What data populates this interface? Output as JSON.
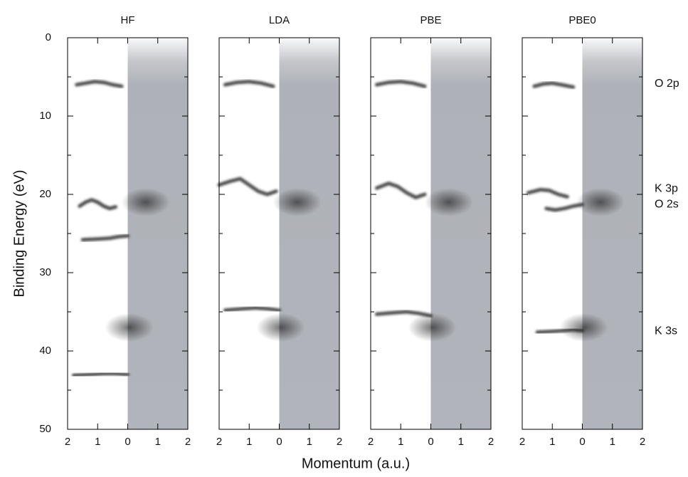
{
  "xlabel": "Momentum (a.u.)",
  "ylabel": "Binding Energy (eV)",
  "chart_data": [
    {
      "type": "spectral",
      "title": "HF",
      "xlim": [
        -2,
        2
      ],
      "ylim": [
        0,
        50
      ],
      "xticks": [
        {
          "value": -2,
          "label": "2"
        },
        {
          "value": -1,
          "label": "1"
        },
        0,
        1,
        2
      ],
      "yticks": [
        0,
        10,
        20,
        30,
        40,
        50
      ],
      "minor_yticks": [
        5,
        15,
        25,
        35,
        45
      ],
      "band_color": "#222222",
      "experiment_color": "#7d828c",
      "bands": [
        {
          "x": [
            -1.7,
            -1.4,
            -1.1,
            -0.8,
            -0.5,
            -0.2
          ],
          "y": [
            6.0,
            5.8,
            5.6,
            5.7,
            6.0,
            6.2
          ]
        },
        {
          "x": [
            -1.6,
            -1.4,
            -1.2,
            -1.0,
            -0.8,
            -0.6,
            -0.4
          ],
          "y": [
            21.5,
            21.0,
            20.7,
            21.0,
            21.5,
            21.8,
            21.6
          ]
        },
        {
          "x": [
            -1.5,
            -1.0,
            -0.6,
            -0.3,
            0
          ],
          "y": [
            25.8,
            25.7,
            25.6,
            25.4,
            25.3
          ]
        },
        {
          "x": [
            -1.8,
            -1.2,
            -0.8,
            -0.4,
            0
          ],
          "y": [
            43.1,
            43.0,
            42.9,
            42.9,
            43.0
          ]
        }
      ],
      "experiment_peaks": {
        "x": [
          0.6,
          0.05
        ],
        "y": [
          21,
          37
        ]
      }
    },
    {
      "type": "spectral",
      "title": "LDA",
      "xlim": [
        -2,
        2
      ],
      "ylim": [
        0,
        50
      ],
      "xticks": [
        {
          "value": -2,
          "label": "2"
        },
        {
          "value": -1,
          "label": "1"
        },
        0,
        1,
        2
      ],
      "yticks": [
        0,
        10,
        20,
        30,
        40,
        50
      ],
      "minor_yticks": [
        5,
        15,
        25,
        35,
        45
      ],
      "band_color": "#222222",
      "experiment_color": "#7d828c",
      "bands": [
        {
          "x": [
            -1.8,
            -1.4,
            -1.0,
            -0.6,
            -0.2
          ],
          "y": [
            6.0,
            5.7,
            5.6,
            5.8,
            6.2
          ]
        },
        {
          "x": [
            -2.0,
            -1.6,
            -1.3,
            -1.0,
            -0.7,
            -0.4,
            -0.1
          ],
          "y": [
            18.8,
            18.3,
            18.0,
            18.8,
            19.6,
            20.0,
            19.6
          ]
        },
        {
          "x": [
            -1.8,
            -1.2,
            -0.8,
            -0.4,
            0
          ],
          "y": [
            34.8,
            34.6,
            34.5,
            34.6,
            34.8
          ]
        }
      ],
      "experiment_peaks": {
        "x": [
          0.6,
          0.05
        ],
        "y": [
          21,
          37
        ]
      }
    },
    {
      "type": "spectral",
      "title": "PBE",
      "xlim": [
        -2,
        2
      ],
      "ylim": [
        0,
        50
      ],
      "xticks": [
        {
          "value": -2,
          "label": "2"
        },
        {
          "value": -1,
          "label": "1"
        },
        0,
        1,
        2
      ],
      "yticks": [
        0,
        10,
        20,
        30,
        40,
        50
      ],
      "minor_yticks": [
        5,
        15,
        25,
        35,
        45
      ],
      "band_color": "#222222",
      "experiment_color": "#7d828c",
      "bands": [
        {
          "x": [
            -1.8,
            -1.4,
            -1.0,
            -0.6,
            -0.2
          ],
          "y": [
            6.0,
            5.7,
            5.6,
            5.8,
            6.2
          ]
        },
        {
          "x": [
            -1.8,
            -1.4,
            -1.1,
            -0.8,
            -0.5,
            -0.2
          ],
          "y": [
            19.2,
            18.6,
            19.0,
            19.8,
            20.4,
            20.0
          ]
        },
        {
          "x": [
            -1.8,
            -1.2,
            -0.8,
            -0.4,
            0
          ],
          "y": [
            35.3,
            35.1,
            35.0,
            35.2,
            35.5
          ]
        }
      ],
      "experiment_peaks": {
        "x": [
          0.6,
          0.05
        ],
        "y": [
          21,
          37
        ]
      }
    },
    {
      "type": "spectral",
      "title": "PBE0",
      "xlim": [
        -2,
        2
      ],
      "ylim": [
        0,
        50
      ],
      "xticks": [
        {
          "value": -2,
          "label": "2"
        },
        {
          "value": -1,
          "label": "1"
        },
        0,
        1,
        2
      ],
      "yticks": [
        0,
        10,
        20,
        30,
        40,
        50
      ],
      "minor_yticks": [
        5,
        15,
        25,
        35,
        45
      ],
      "band_color": "#222222",
      "experiment_color": "#7d828c",
      "bands": [
        {
          "x": [
            -1.6,
            -1.3,
            -1.0,
            -0.7,
            -0.3
          ],
          "y": [
            6.2,
            5.9,
            5.8,
            6.0,
            6.3
          ]
        },
        {
          "x": [
            -1.8,
            -1.4,
            -1.1,
            -0.8,
            -0.5
          ],
          "y": [
            19.8,
            19.4,
            19.5,
            20.0,
            20.3
          ]
        },
        {
          "x": [
            -1.2,
            -0.9,
            -0.6,
            -0.3,
            0
          ],
          "y": [
            21.8,
            22.0,
            21.8,
            21.5,
            21.3
          ]
        },
        {
          "x": [
            -1.5,
            -1.0,
            -0.6,
            -0.3,
            0
          ],
          "y": [
            37.6,
            37.5,
            37.4,
            37.3,
            37.4
          ]
        }
      ],
      "experiment_peaks": {
        "x": [
          0.6,
          0.05
        ],
        "y": [
          21,
          37
        ]
      },
      "annotations": [
        {
          "text": "O 2p",
          "y": 5.9
        },
        {
          "text": "K 3p",
          "y": 19.3
        },
        {
          "text": "O 2s",
          "y": 21.3
        },
        {
          "text": "K 3s",
          "y": 37.5
        }
      ]
    }
  ]
}
